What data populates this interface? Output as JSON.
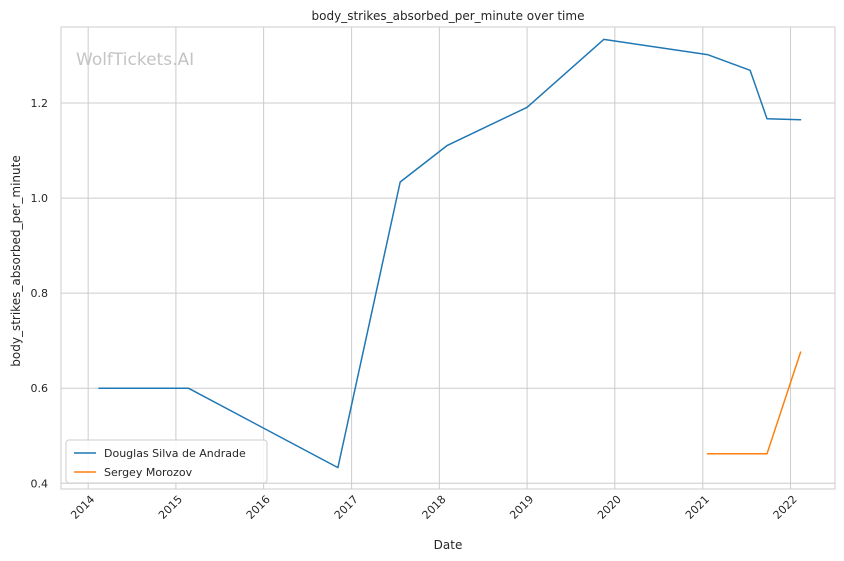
{
  "chart_data": {
    "type": "line",
    "title": "body_strikes_absorbed_per_minute over time",
    "xlabel": "Date",
    "ylabel": "body_strikes_absorbed_per_minute",
    "watermark": "WolfTickets.AI",
    "x_tick_labels": [
      "2014",
      "2015",
      "2016",
      "2017",
      "2018",
      "2019",
      "2020",
      "2021",
      "2022"
    ],
    "y_tick_labels": [
      "0.4",
      "0.6",
      "0.8",
      "1.0",
      "1.2"
    ],
    "x_ticks": [
      "2014-01-01",
      "2015-01-01",
      "2016-01-01",
      "2017-01-01",
      "2018-01-01",
      "2019-01-01",
      "2020-01-01",
      "2021-01-01",
      "2022-01-01"
    ],
    "y_ticks": [
      0.4,
      0.6,
      0.8,
      1.0,
      1.2
    ],
    "xlim": [
      "2013-09-10",
      "2022-07-05"
    ],
    "ylim": [
      0.388,
      1.36
    ],
    "grid": true,
    "legend_position": "lower left",
    "series": [
      {
        "name": "Douglas Silva de Andrade",
        "color": "#1f77b4",
        "x": [
          "2014-02-15",
          "2015-02-22",
          "2016-11-05",
          "2017-07-22",
          "2018-02-03",
          "2019-01-01",
          "2019-11-16",
          "2021-01-20",
          "2021-07-17",
          "2021-09-25",
          "2022-02-12"
        ],
        "y": [
          0.6,
          0.6,
          0.433,
          1.034,
          1.111,
          1.191,
          1.334,
          1.302,
          1.269,
          1.167,
          1.165
        ]
      },
      {
        "name": "Sergey Morozov",
        "color": "#ff7f0e",
        "x": [
          "2021-01-20",
          "2021-09-25",
          "2022-02-12"
        ],
        "y": [
          0.462,
          0.462,
          0.676
        ]
      }
    ]
  }
}
